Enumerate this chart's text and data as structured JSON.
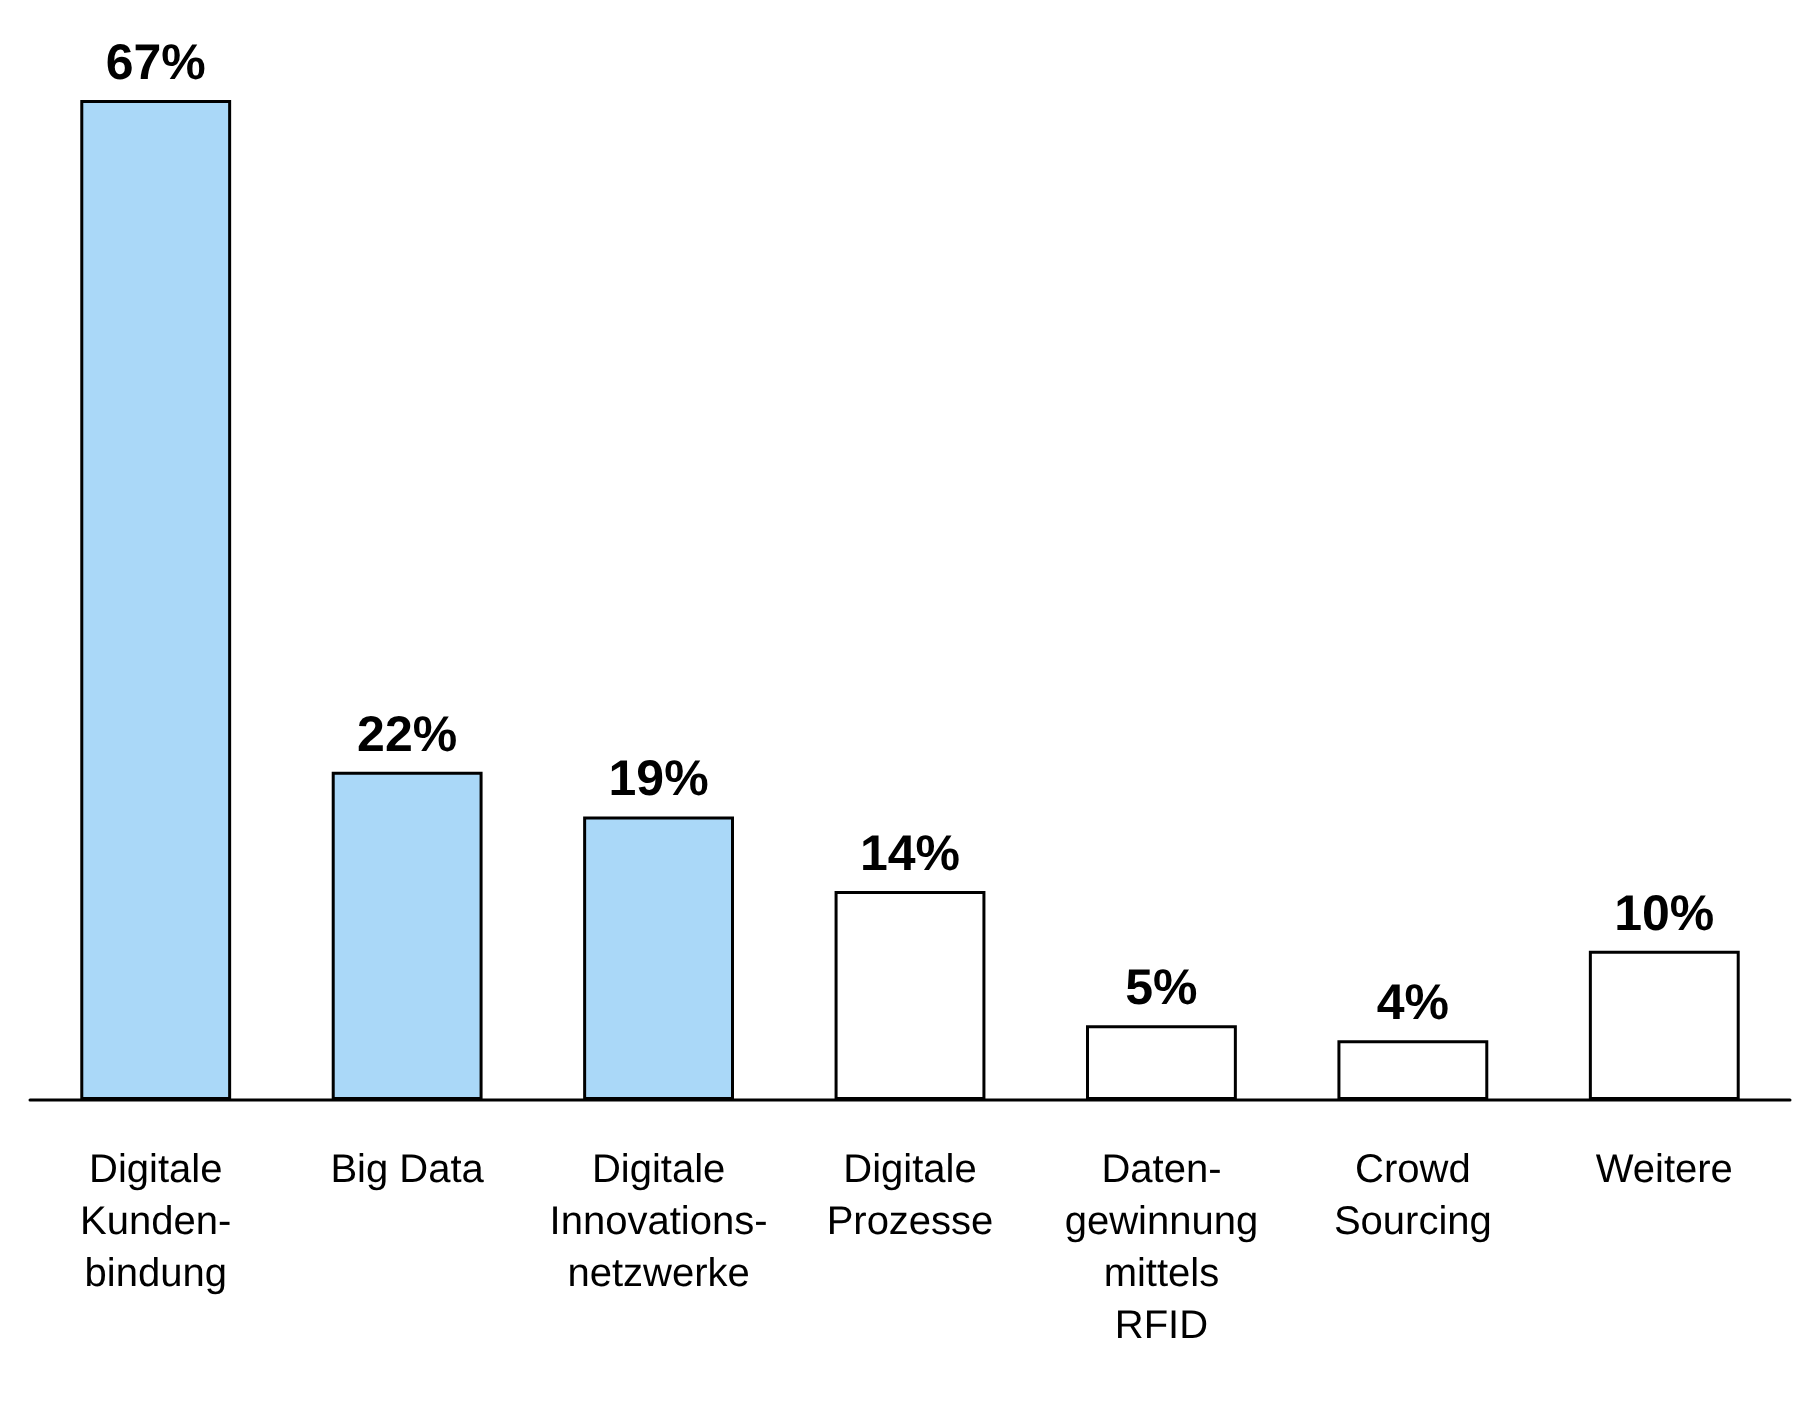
{
  "chart_data": {
    "type": "bar",
    "categories": [
      "Digitale\nKunden-\nbindung",
      "Big Data",
      "Digitale\nInnovations-\nnetzwerke",
      "Digitale\nProzesse",
      "Daten-\ngewinnung\nmittels\nRFID",
      "Crowd\nSourcing",
      "Weitere"
    ],
    "values": [
      67,
      22,
      19,
      14,
      5,
      4,
      10
    ],
    "value_labels": [
      "67%",
      "22%",
      "19%",
      "14%",
      "5%",
      "4%",
      "10%"
    ],
    "colors": [
      "#aad8f8",
      "#aad8f8",
      "#aad8f8",
      "#ffffff",
      "#ffffff",
      "#ffffff",
      "#ffffff"
    ],
    "grid": false
  }
}
